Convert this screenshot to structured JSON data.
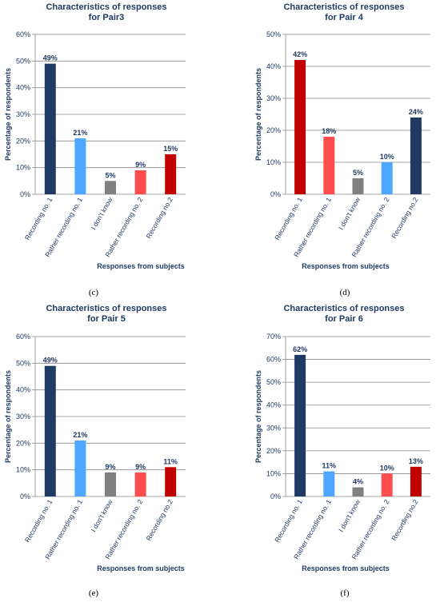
{
  "chart_data": [
    {
      "type": "bar",
      "title_lines": [
        "Characteristics of responses",
        "for Pair3"
      ],
      "ylabel": "Percentage of respondents",
      "xlabel": "Responses from subjects",
      "caption": "(c)",
      "ylim": [
        0,
        60
      ],
      "yticks": [
        "0%",
        "10%",
        "20%",
        "30%",
        "40%",
        "50%",
        "60%"
      ],
      "categories": [
        "Recording no. 1",
        "Rather recording no. 1",
        "I don't know",
        "Rather recording no. 2",
        "Recording no.2"
      ],
      "values": [
        49,
        21,
        5,
        9,
        15
      ],
      "value_labels": [
        "49%",
        "21%",
        "5%",
        "9%",
        "15%"
      ],
      "colors": [
        "#1F3B64",
        "#4DA6FF",
        "#808080",
        "#FF4D4D",
        "#C00000"
      ],
      "grid": true
    },
    {
      "type": "bar",
      "title_lines": [
        "Characteristics of responses",
        "for Pair 4"
      ],
      "ylabel": "Percentage of respondents",
      "xlabel": "Responses from subjects",
      "caption": "(d)",
      "ylim": [
        0,
        50
      ],
      "yticks": [
        "0%",
        "10%",
        "20%",
        "30%",
        "40%",
        "50%"
      ],
      "categories": [
        "Recording no. 1",
        "Rather recording no. 1",
        "I don't know",
        "Rather recording no. 2",
        "Recording no.2"
      ],
      "values": [
        42,
        18,
        5,
        10,
        24
      ],
      "value_labels": [
        "42%",
        "18%",
        "5%",
        "10%",
        "24%"
      ],
      "colors": [
        "#C00000",
        "#FF4D4D",
        "#808080",
        "#4DA6FF",
        "#1F3B64"
      ],
      "grid": true
    },
    {
      "type": "bar",
      "title_lines": [
        "Characteristics of responses",
        "for Pair 5"
      ],
      "ylabel": "Percentage of respondents",
      "xlabel": "Responses from subjects",
      "caption": "(e)",
      "ylim": [
        0,
        60
      ],
      "yticks": [
        "0%",
        "10%",
        "20%",
        "30%",
        "40%",
        "50%",
        "60%"
      ],
      "categories": [
        "Recording no. 1",
        "Rather recording no. 1",
        "I don't know",
        "Rather recording no. 2",
        "Recording no.2"
      ],
      "values": [
        49,
        21,
        9,
        9,
        11
      ],
      "value_labels": [
        "49%",
        "21%",
        "9%",
        "9%",
        "11%"
      ],
      "colors": [
        "#1F3B64",
        "#4DA6FF",
        "#808080",
        "#FF4D4D",
        "#C00000"
      ],
      "grid": true
    },
    {
      "type": "bar",
      "title_lines": [
        "Characteristics of responses",
        "for Pair 6"
      ],
      "ylabel": "Percentage of respondents",
      "xlabel": "Responses from subjects",
      "caption": "(f)",
      "ylim": [
        0,
        70
      ],
      "yticks": [
        "0%",
        "10%",
        "20%",
        "30%",
        "40%",
        "50%",
        "60%",
        "70%"
      ],
      "categories": [
        "Recording no. 1",
        "Rather recording no. 1",
        "I don't know",
        "Rather recording no. 2",
        "Recording no.2"
      ],
      "values": [
        62,
        11,
        4,
        10,
        13
      ],
      "value_labels": [
        "62%",
        "11%",
        "4%",
        "10%",
        "13%"
      ],
      "colors": [
        "#1F3B64",
        "#4DA6FF",
        "#808080",
        "#FF4D4D",
        "#C00000"
      ],
      "grid": true
    }
  ]
}
